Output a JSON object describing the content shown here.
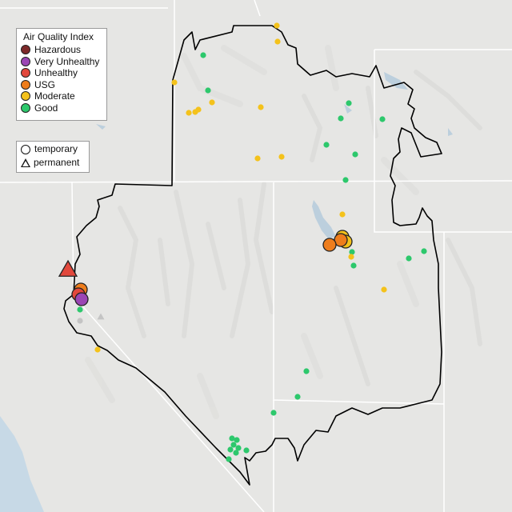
{
  "legend_aqi": {
    "title": "Air Quality Index",
    "items": [
      {
        "label": "Hazardous",
        "color": "#7e2a2a"
      },
      {
        "label": "Very Unhealthy",
        "color": "#9b46b4"
      },
      {
        "label": "Unhealthy",
        "color": "#e2483c"
      },
      {
        "label": "USG",
        "color": "#ee7d1c"
      },
      {
        "label": "Moderate",
        "color": "#f4c21b"
      },
      {
        "label": "Good",
        "color": "#2dc86c"
      }
    ]
  },
  "legend_type": {
    "items": [
      {
        "label": "temporary",
        "shape": "circle"
      },
      {
        "label": "permanent",
        "shape": "triangle"
      }
    ]
  },
  "map": {
    "basemap": "shaded-relief-light-gray",
    "ocean_color": "#c7d9e6",
    "land_color": "#e6e6e4",
    "boundary_color": "#000000",
    "state_line_color": "#ffffff"
  }
}
